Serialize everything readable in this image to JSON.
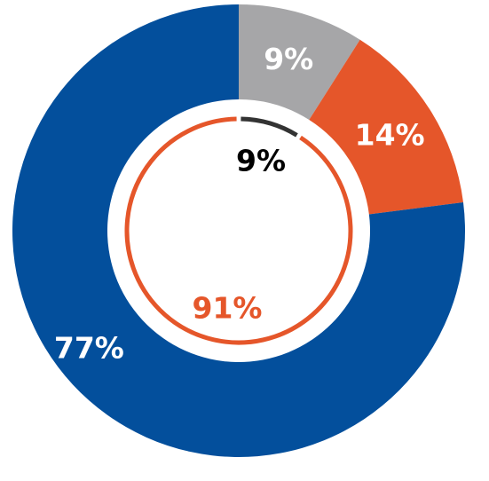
{
  "chart_data": [
    {
      "type": "pie",
      "variant": "donut",
      "ring": "outer",
      "slices": [
        {
          "label": "9%",
          "value": 9,
          "color": "#a6a6a8"
        },
        {
          "label": "14%",
          "value": 14,
          "color": "#e5562a"
        },
        {
          "label": "77%",
          "value": 77,
          "color": "#034f9c"
        }
      ]
    },
    {
      "type": "pie",
      "variant": "ring",
      "ring": "inner",
      "slices": [
        {
          "label": "9%",
          "value": 9,
          "color": "#333333"
        },
        {
          "label": "91%",
          "value": 91,
          "color": "#e5562a"
        }
      ]
    }
  ]
}
